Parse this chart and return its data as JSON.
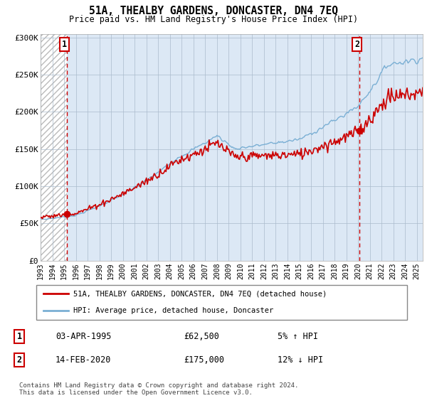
{
  "title": "51A, THEALBY GARDENS, DONCASTER, DN4 7EQ",
  "subtitle": "Price paid vs. HM Land Registry's House Price Index (HPI)",
  "legend_line1": "51A, THEALBY GARDENS, DONCASTER, DN4 7EQ (detached house)",
  "legend_line2": "HPI: Average price, detached house, Doncaster",
  "transaction1_date": "03-APR-1995",
  "transaction1_price": "£62,500",
  "transaction1_hpi": "5% ↑ HPI",
  "transaction2_date": "14-FEB-2020",
  "transaction2_price": "£175,000",
  "transaction2_hpi": "12% ↓ HPI",
  "footer": "Contains HM Land Registry data © Crown copyright and database right 2024.\nThis data is licensed under the Open Government Licence v3.0.",
  "property_color": "#cc0000",
  "hpi_color": "#7aafd4",
  "marker_color": "#cc0000",
  "vline_color": "#cc0000",
  "grid_color": "#aabbcc",
  "plot_bg_color": "#dce8f5",
  "ylim_min": 0,
  "ylim_max": 300000,
  "yticks": [
    0,
    50000,
    100000,
    150000,
    200000,
    250000,
    300000
  ],
  "ytick_labels": [
    "£0",
    "£50K",
    "£100K",
    "£150K",
    "£200K",
    "£250K",
    "£300K"
  ],
  "transaction1_x": 1995.25,
  "transaction1_y": 62500,
  "transaction2_x": 2020.12,
  "transaction2_y": 175000,
  "xlim_min": 1993.0,
  "xlim_max": 2025.5,
  "xtick_years": [
    1993,
    1994,
    1995,
    1996,
    1997,
    1998,
    1999,
    2000,
    2001,
    2002,
    2003,
    2004,
    2005,
    2006,
    2007,
    2008,
    2009,
    2010,
    2011,
    2012,
    2013,
    2014,
    2015,
    2016,
    2017,
    2018,
    2019,
    2020,
    2021,
    2022,
    2023,
    2024,
    2025
  ]
}
